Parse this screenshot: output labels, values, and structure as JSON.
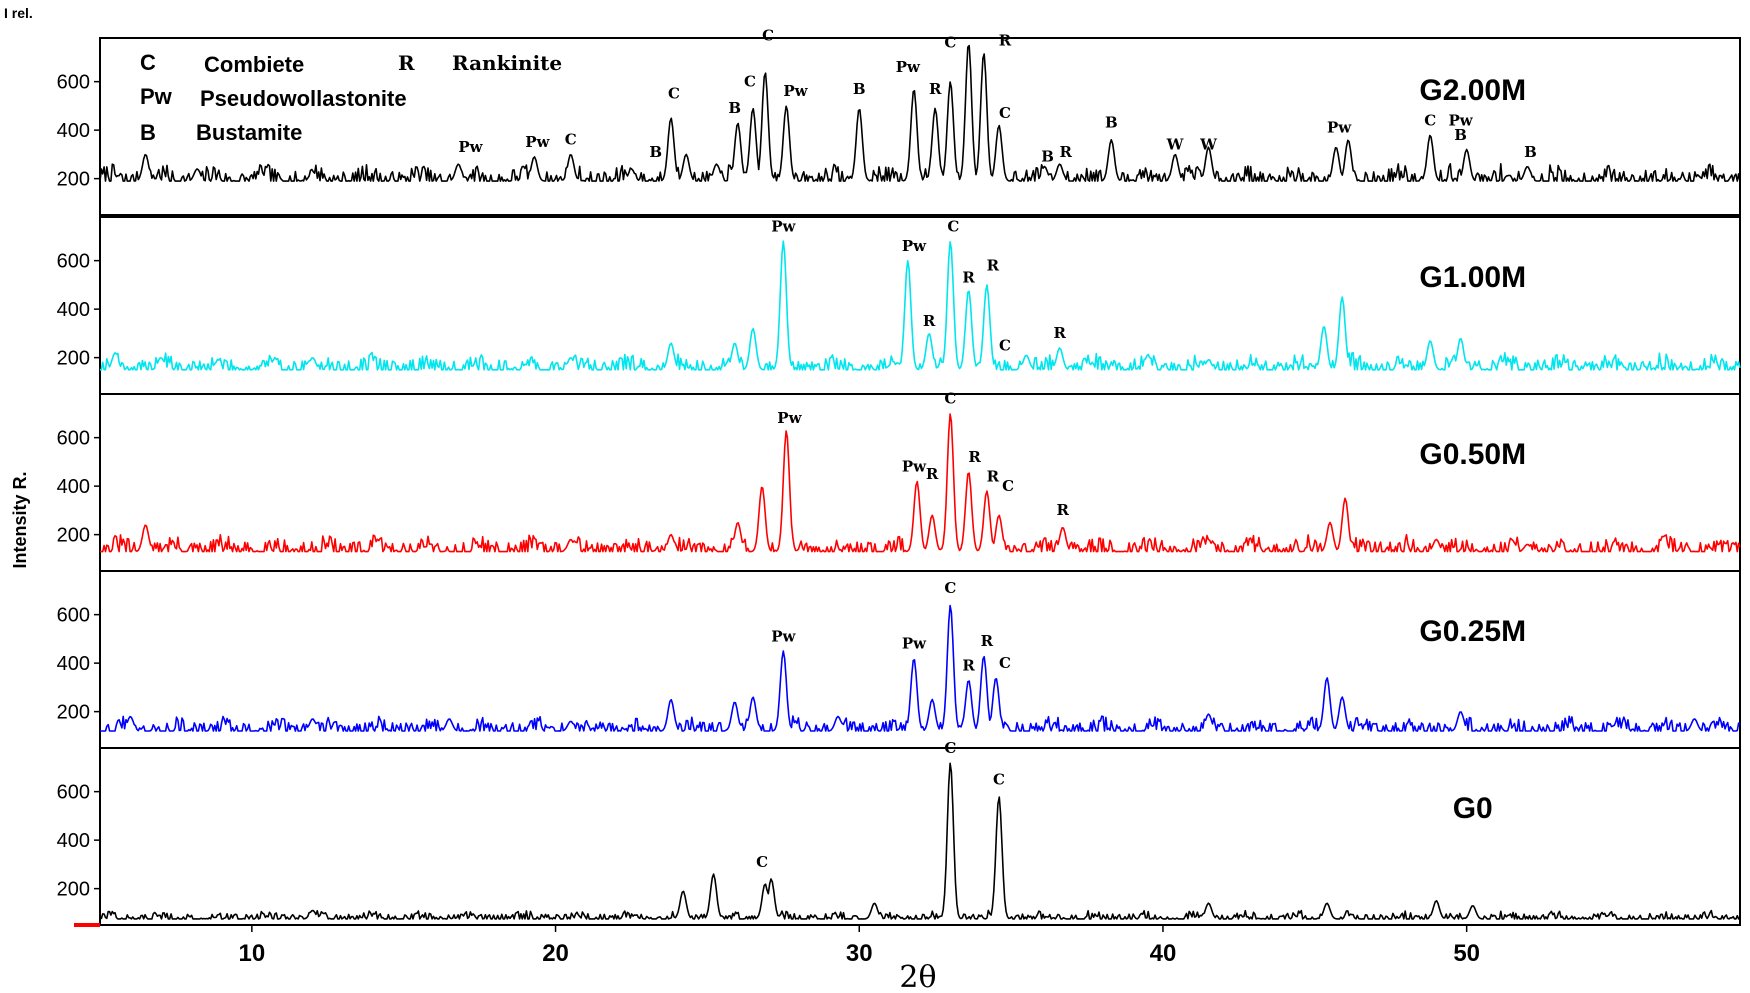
{
  "chart_data": {
    "type": "line",
    "corner_label": "I rel.",
    "ylabel": "Intensity R.",
    "xlabel": "2θ",
    "xlim": [
      5,
      59
    ],
    "ylim": [
      50,
      780
    ],
    "x_ticks": [
      10,
      20,
      30,
      40,
      50
    ],
    "y_ticks": [
      200,
      400,
      600
    ],
    "legend": [
      {
        "abbr": "C",
        "name": "Combiete"
      },
      {
        "abbr": "R",
        "name": "Rankinite"
      },
      {
        "abbr": "Pw",
        "name": "Pseudowollastonite"
      },
      {
        "abbr": "B",
        "name": "Bustamite"
      }
    ],
    "series": [
      {
        "name": "G2.00M",
        "color": "#000000",
        "baseline": 190,
        "noise": 40,
        "seed": 7,
        "peaks": [
          [
            6.5,
            300
          ],
          [
            8.2,
            240
          ],
          [
            10.3,
            230
          ],
          [
            12,
            230
          ],
          [
            16.8,
            260
          ],
          [
            19.3,
            290
          ],
          [
            20.5,
            300
          ],
          [
            22.5,
            240
          ],
          [
            23.8,
            450
          ],
          [
            24.3,
            300
          ],
          [
            25.3,
            260
          ],
          [
            26,
            430
          ],
          [
            26.5,
            490
          ],
          [
            26.9,
            640
          ],
          [
            27.6,
            500
          ],
          [
            30,
            490
          ],
          [
            31.8,
            570
          ],
          [
            32.5,
            490
          ],
          [
            33,
            600
          ],
          [
            33.6,
            760
          ],
          [
            34.1,
            720
          ],
          [
            34.6,
            420
          ],
          [
            36.1,
            250
          ],
          [
            36.6,
            260
          ],
          [
            38.3,
            360
          ],
          [
            40.4,
            300
          ],
          [
            41.5,
            330
          ],
          [
            45.7,
            330
          ],
          [
            46.1,
            360
          ],
          [
            48.8,
            380
          ],
          [
            50,
            320
          ],
          [
            52,
            250
          ]
        ],
        "labels": [
          {
            "text": "Pw",
            "x": 17.2,
            "y": 310
          },
          {
            "text": "Pw",
            "x": 19.4,
            "y": 330
          },
          {
            "text": "C",
            "x": 20.5,
            "y": 340
          },
          {
            "text": "B",
            "x": 23.3,
            "y": 290
          },
          {
            "text": "C",
            "x": 23.9,
            "y": 530
          },
          {
            "text": "B",
            "x": 25.9,
            "y": 470
          },
          {
            "text": "C",
            "x": 26.4,
            "y": 580
          },
          {
            "text": "C",
            "x": 27.0,
            "y": 770
          },
          {
            "text": "Pw",
            "x": 27.9,
            "y": 540
          },
          {
            "text": "B",
            "x": 30.0,
            "y": 550
          },
          {
            "text": "Pw",
            "x": 31.6,
            "y": 640
          },
          {
            "text": "R",
            "x": 32.5,
            "y": 550
          },
          {
            "text": "C",
            "x": 33.0,
            "y": 740
          },
          {
            "text": "R",
            "x": 34.8,
            "y": 750
          },
          {
            "text": "C",
            "x": 34.8,
            "y": 450
          },
          {
            "text": "B",
            "x": 36.2,
            "y": 270
          },
          {
            "text": "R",
            "x": 36.8,
            "y": 290
          },
          {
            "text": "B",
            "x": 38.3,
            "y": 410
          },
          {
            "text": "W",
            "x": 40.4,
            "y": 320
          },
          {
            "text": "W",
            "x": 41.5,
            "y": 320
          },
          {
            "text": "Pw",
            "x": 45.8,
            "y": 390
          },
          {
            "text": "C",
            "x": 48.8,
            "y": 420
          },
          {
            "text": "Pw",
            "x": 49.8,
            "y": 420
          },
          {
            "text": "B",
            "x": 49.8,
            "y": 360
          },
          {
            "text": "B",
            "x": 52.1,
            "y": 290
          }
        ]
      },
      {
        "name": "G1.00M",
        "color": "#00e5ee",
        "baseline": 150,
        "noise": 40,
        "seed": 19,
        "peaks": [
          [
            5.5,
            220
          ],
          [
            7,
            200
          ],
          [
            12,
            200
          ],
          [
            20.5,
            200
          ],
          [
            23.8,
            260
          ],
          [
            25.9,
            260
          ],
          [
            26.5,
            320
          ],
          [
            27.5,
            680
          ],
          [
            31.6,
            600
          ],
          [
            32.3,
            300
          ],
          [
            33,
            680
          ],
          [
            33.6,
            480
          ],
          [
            34.2,
            500
          ],
          [
            35.5,
            210
          ],
          [
            36.6,
            240
          ],
          [
            39.5,
            210
          ],
          [
            41.5,
            190
          ],
          [
            45.3,
            330
          ],
          [
            45.9,
            450
          ],
          [
            48.8,
            270
          ],
          [
            49.8,
            280
          ]
        ],
        "labels": [
          {
            "text": "Pw",
            "x": 27.5,
            "y": 720
          },
          {
            "text": "Pw",
            "x": 31.8,
            "y": 640
          },
          {
            "text": "R",
            "x": 32.3,
            "y": 330
          },
          {
            "text": "C",
            "x": 33.1,
            "y": 720
          },
          {
            "text": "R",
            "x": 33.6,
            "y": 510
          },
          {
            "text": "R",
            "x": 34.4,
            "y": 560
          },
          {
            "text": "C",
            "x": 34.8,
            "y": 230
          },
          {
            "text": "R",
            "x": 36.6,
            "y": 280
          }
        ]
      },
      {
        "name": "G0.50M",
        "color": "#ff0000",
        "baseline": 130,
        "noise": 40,
        "seed": 31,
        "peaks": [
          [
            6.5,
            240
          ],
          [
            20.5,
            180
          ],
          [
            23.8,
            200
          ],
          [
            26,
            250
          ],
          [
            26.8,
            400
          ],
          [
            27.6,
            630
          ],
          [
            31.9,
            420
          ],
          [
            32.4,
            280
          ],
          [
            33,
            700
          ],
          [
            33.6,
            460
          ],
          [
            34.2,
            380
          ],
          [
            34.6,
            280
          ],
          [
            36.7,
            230
          ],
          [
            41.5,
            180
          ],
          [
            45.5,
            250
          ],
          [
            46,
            350
          ],
          [
            49,
            180
          ],
          [
            52,
            160
          ]
        ],
        "labels": [
          {
            "text": "Pw",
            "x": 27.7,
            "y": 660
          },
          {
            "text": "Pw",
            "x": 31.8,
            "y": 460
          },
          {
            "text": "R",
            "x": 32.4,
            "y": 430
          },
          {
            "text": "C",
            "x": 33.0,
            "y": 740
          },
          {
            "text": "R",
            "x": 33.8,
            "y": 500
          },
          {
            "text": "R",
            "x": 34.4,
            "y": 420
          },
          {
            "text": "C",
            "x": 34.9,
            "y": 380
          },
          {
            "text": "R",
            "x": 36.7,
            "y": 280
          }
        ]
      },
      {
        "name": "G0.25M",
        "color": "#0000ff",
        "baseline": 120,
        "noise": 35,
        "seed": 43,
        "peaks": [
          [
            6,
            180
          ],
          [
            12,
            170
          ],
          [
            16.5,
            170
          ],
          [
            20.5,
            160
          ],
          [
            23.8,
            250
          ],
          [
            25.9,
            240
          ],
          [
            26.5,
            260
          ],
          [
            27.5,
            450
          ],
          [
            29.3,
            180
          ],
          [
            31.8,
            420
          ],
          [
            32.4,
            250
          ],
          [
            33,
            640
          ],
          [
            33.6,
            330
          ],
          [
            34.1,
            430
          ],
          [
            34.5,
            340
          ],
          [
            41.5,
            190
          ],
          [
            45.4,
            340
          ],
          [
            45.9,
            260
          ],
          [
            49.8,
            200
          ],
          [
            57.5,
            170
          ]
        ],
        "labels": [
          {
            "text": "Pw",
            "x": 27.5,
            "y": 490
          },
          {
            "text": "Pw",
            "x": 31.8,
            "y": 460
          },
          {
            "text": "C",
            "x": 33.0,
            "y": 690
          },
          {
            "text": "R",
            "x": 33.6,
            "y": 370
          },
          {
            "text": "R",
            "x": 34.2,
            "y": 470
          },
          {
            "text": "C",
            "x": 34.8,
            "y": 380
          }
        ]
      },
      {
        "name": "G0",
        "color": "#000000",
        "baseline": 75,
        "noise": 20,
        "seed": 57,
        "peaks": [
          [
            12,
            110
          ],
          [
            24.2,
            190
          ],
          [
            25.2,
            260
          ],
          [
            26.9,
            220
          ],
          [
            27.1,
            240
          ],
          [
            30.5,
            140
          ],
          [
            33,
            720
          ],
          [
            34.6,
            580
          ],
          [
            41.5,
            140
          ],
          [
            45.4,
            140
          ],
          [
            49,
            150
          ],
          [
            50.2,
            130
          ]
        ],
        "labels": [
          {
            "text": "C",
            "x": 26.8,
            "y": 290
          },
          {
            "text": "C",
            "x": 33.0,
            "y": 760
          },
          {
            "text": "C",
            "x": 34.6,
            "y": 630
          }
        ]
      }
    ]
  }
}
